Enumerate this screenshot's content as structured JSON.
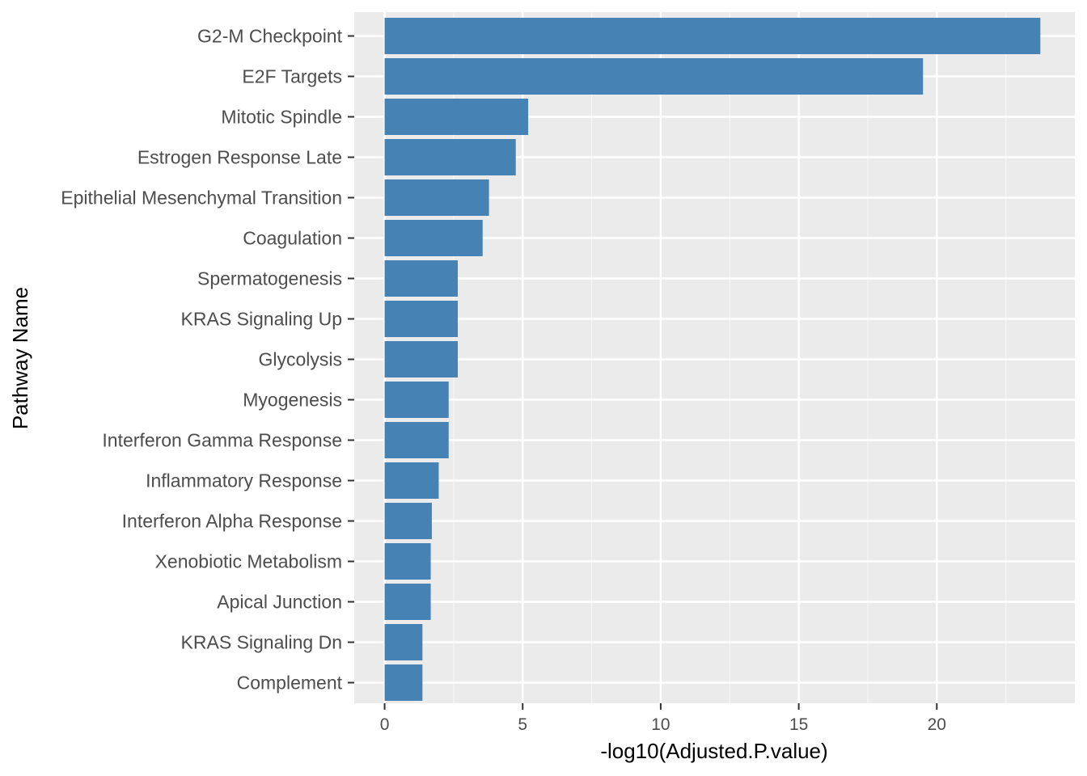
{
  "chart_data": {
    "type": "bar",
    "orientation": "horizontal",
    "title": "",
    "xlabel": "-log10(Adjusted.P.value)",
    "ylabel": "Pathway Name",
    "xlim": [
      -1.1,
      25.0
    ],
    "xticks": [
      0,
      5,
      10,
      15,
      20
    ],
    "grid": true,
    "categories": [
      "G2-M Checkpoint",
      "E2F Targets",
      "Mitotic Spindle",
      "Estrogen Response Late",
      "Epithelial Mesenchymal Transition",
      "Coagulation",
      "Spermatogenesis",
      "KRAS Signaling Up",
      "Glycolysis",
      "Myogenesis",
      "Interferon Gamma Response",
      "Inflammatory Response",
      "Interferon Alpha Response",
      "Xenobiotic Metabolism",
      "Apical Junction",
      "KRAS Signaling Dn",
      "Complement"
    ],
    "values": [
      23.75,
      19.5,
      5.2,
      4.75,
      3.78,
      3.55,
      2.65,
      2.65,
      2.65,
      2.32,
      2.32,
      1.96,
      1.71,
      1.67,
      1.67,
      1.37,
      1.37
    ],
    "colors": {
      "bar": "#4682b4",
      "panel": "#ebebeb",
      "grid_major": "#ffffff",
      "grid_minor": "#f5f5f5",
      "tick": "#333333"
    }
  }
}
